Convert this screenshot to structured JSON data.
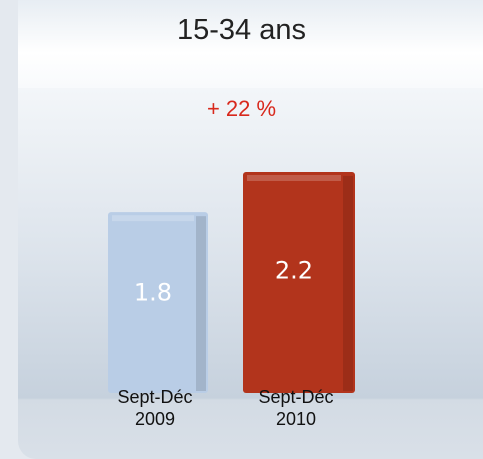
{
  "chart_data": {
    "type": "bar",
    "title": "15-34 ans",
    "annotation": "+ 22 %",
    "categories": [
      "Sept-Déc\n2009",
      "Sept-Déc\n2010"
    ],
    "values": [
      1.8,
      2.2
    ],
    "colors": [
      "#b9cde6",
      "#b2341c"
    ]
  }
}
